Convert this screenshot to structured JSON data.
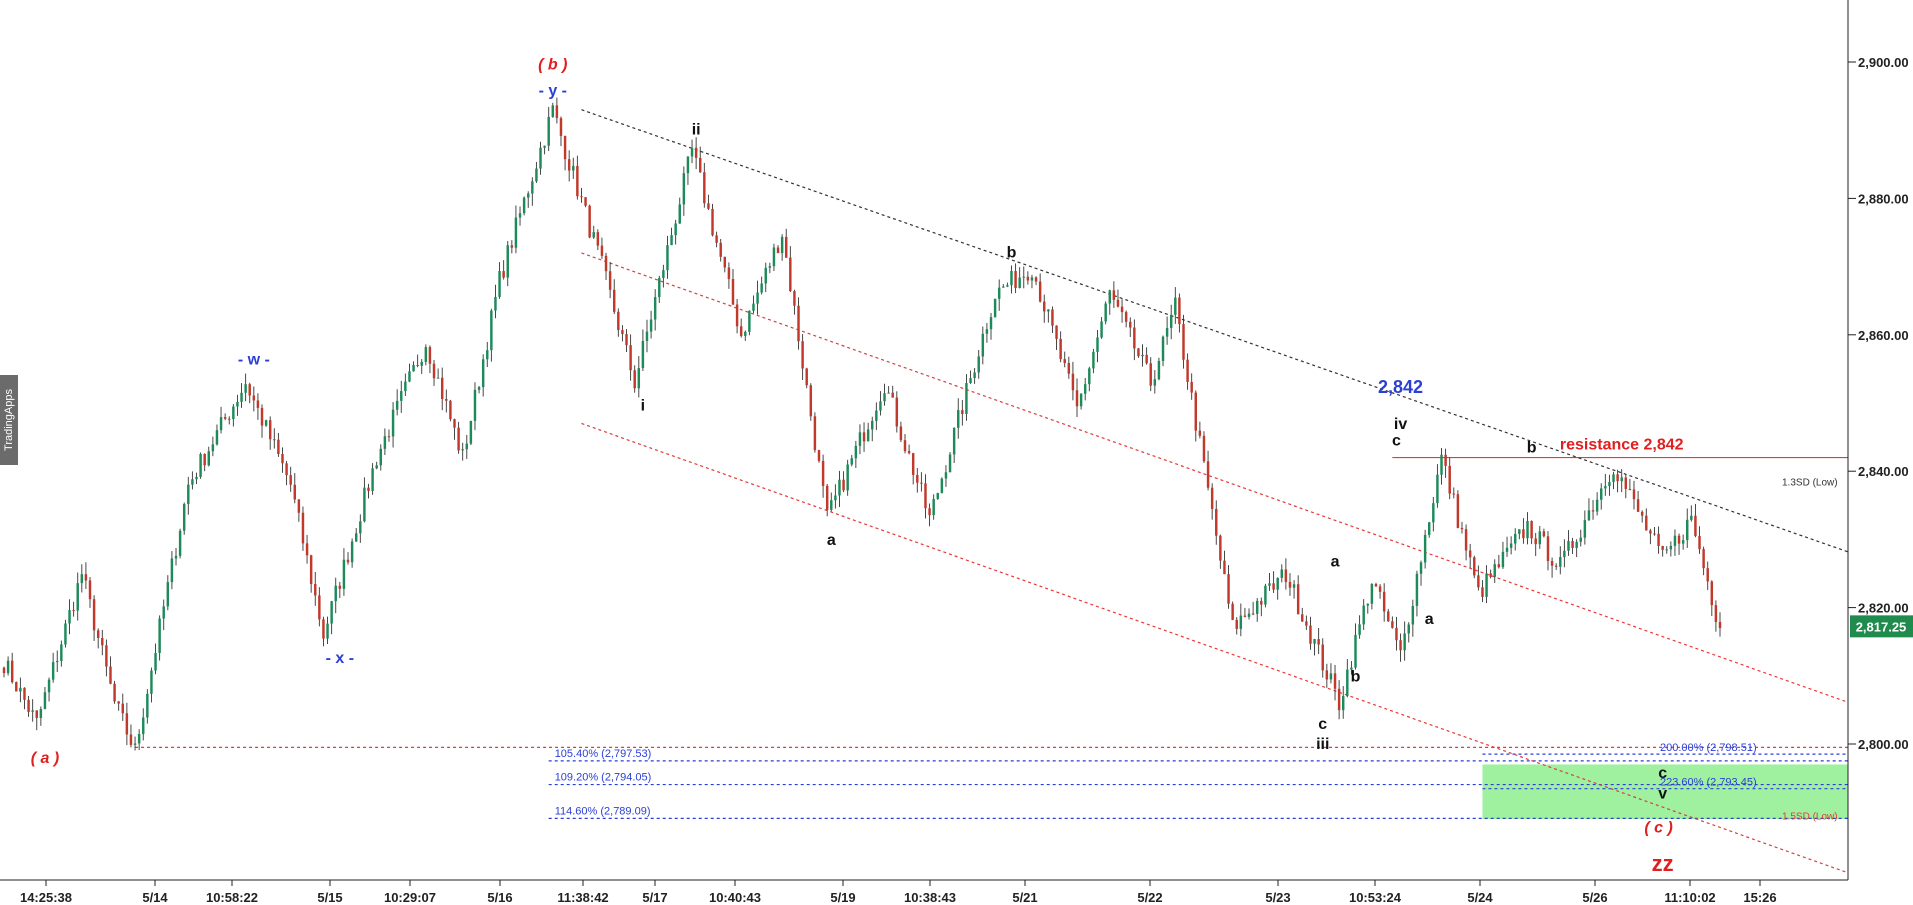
{
  "watermark": "TradingApps",
  "colors": {
    "up": "#1e8a5a",
    "down": "#c0392b",
    "wick": "#333333",
    "black_line": "#333333",
    "red_line": "#e23b3b",
    "blue_line": "#2b3fd6",
    "zone": "#9ff09f",
    "price_badge": "#1f8b4c"
  },
  "chart_data": {
    "type": "candlestick",
    "title": "",
    "xlabel": "",
    "ylabel": "",
    "ylim": [
      2775,
      2908
    ],
    "current_price": 2817.25,
    "current_price_label": "2,817.25",
    "y_ticks": [
      {
        "value": 2800,
        "label": "2,800.00"
      },
      {
        "value": 2820,
        "label": "2,820.00"
      },
      {
        "value": 2840,
        "label": "2,840.00"
      },
      {
        "value": 2860,
        "label": "2,860.00"
      },
      {
        "value": 2880,
        "label": "2,880.00"
      },
      {
        "value": 2900,
        "label": "2,900.00"
      }
    ],
    "x_ticks": [
      "14:25:38",
      "5/14",
      "10:58:22",
      "5/15",
      "10:29:07",
      "5/16",
      "11:38:42",
      "5/17",
      "10:40:43",
      "5/19",
      "10:38:43",
      "5/21",
      "5/22",
      "5/23",
      "10:53:24",
      "5/24",
      "5/26",
      "11:10:02",
      "15:26"
    ],
    "pivots": [
      {
        "i": 0,
        "v": 2812
      },
      {
        "i": 8,
        "v": 2803
      },
      {
        "i": 19,
        "v": 2825
      },
      {
        "i": 27,
        "v": 2806
      },
      {
        "i": 32,
        "v": 2799
      },
      {
        "i": 45,
        "v": 2838
      },
      {
        "i": 59,
        "v": 2853
      },
      {
        "i": 70,
        "v": 2838
      },
      {
        "i": 78,
        "v": 2816
      },
      {
        "i": 91,
        "v": 2842
      },
      {
        "i": 103,
        "v": 2859
      },
      {
        "i": 112,
        "v": 2842
      },
      {
        "i": 121,
        "v": 2868
      },
      {
        "i": 134,
        "v": 2893
      },
      {
        "i": 146,
        "v": 2870
      },
      {
        "i": 154,
        "v": 2853
      },
      {
        "i": 168,
        "v": 2887
      },
      {
        "i": 180,
        "v": 2860
      },
      {
        "i": 190,
        "v": 2875
      },
      {
        "i": 201,
        "v": 2833
      },
      {
        "i": 215,
        "v": 2853
      },
      {
        "i": 226,
        "v": 2833
      },
      {
        "i": 242,
        "v": 2866
      },
      {
        "i": 251,
        "v": 2870
      },
      {
        "i": 262,
        "v": 2849
      },
      {
        "i": 270,
        "v": 2866
      },
      {
        "i": 280,
        "v": 2853
      },
      {
        "i": 286,
        "v": 2864
      },
      {
        "i": 300,
        "v": 2817
      },
      {
        "i": 313,
        "v": 2825
      },
      {
        "i": 326,
        "v": 2806
      },
      {
        "i": 334,
        "v": 2824
      },
      {
        "i": 341,
        "v": 2813
      },
      {
        "i": 351,
        "v": 2842
      },
      {
        "i": 360,
        "v": 2822
      },
      {
        "i": 372,
        "v": 2832
      },
      {
        "i": 380,
        "v": 2826
      },
      {
        "i": 393,
        "v": 2841
      },
      {
        "i": 405,
        "v": 2827
      },
      {
        "i": 412,
        "v": 2833
      },
      {
        "i": 419,
        "v": 2817
      }
    ],
    "candle_count": 420,
    "channels": [
      {
        "color": "black_line",
        "dash": "3,3",
        "from": {
          "i": 141,
          "v": 2893
        },
        "to": {
          "i": 432,
          "v": 2832
        }
      },
      {
        "color": "red_line",
        "dash": "3,3",
        "from": {
          "i": 141,
          "v": 2872
        },
        "to": {
          "i": 432,
          "v": 2810
        }
      },
      {
        "color": "red_line",
        "dash": "3,3",
        "from": {
          "i": 141,
          "v": 2847
        },
        "to": {
          "i": 432,
          "v": 2785
        }
      }
    ],
    "levels": [
      {
        "value": 2799.5,
        "from_i": 32,
        "color": "red_line",
        "dash": "3,3"
      },
      {
        "value": 2797.53,
        "from_i": 133,
        "color": "blue_line",
        "dash": "3,3",
        "label": "105.40% (2,797.53)"
      },
      {
        "value": 2794.05,
        "from_i": 133,
        "color": "blue_line",
        "dash": "3,3",
        "label": "109.20% (2,794.05)"
      },
      {
        "value": 2789.09,
        "from_i": 133,
        "color": "blue_line",
        "dash": "3,3",
        "label": "114.60% (2,789.09)"
      },
      {
        "value": 2842,
        "from_i": 339,
        "color": "red_line",
        "dash": "",
        "label": "resistance 2,842"
      }
    ],
    "right_levels": [
      {
        "value": 2798.51,
        "label": "200.00% (2,798.51)",
        "color": "blue_line"
      },
      {
        "value": 2793.45,
        "label": "223.60% (2,793.45)",
        "color": "blue_line"
      }
    ],
    "zone": {
      "from_i": 361,
      "top": 2797,
      "bottom": 2789
    },
    "sd_labels": [
      {
        "value": 2838.5,
        "label": "1.3SD (Low)",
        "color": "#333333"
      },
      {
        "value": 2789.5,
        "label": "1.5SD (Low)",
        "color": "#e23b3b"
      }
    ],
    "annotations": [
      {
        "text": "( a )",
        "i": 10,
        "v": 2801,
        "color": "#e02020",
        "size": 16,
        "italic": true,
        "dy": 26
      },
      {
        "text": "- w -",
        "i": 61,
        "v": 2853,
        "color": "#2b3fd6",
        "size": 16,
        "dy": -18
      },
      {
        "text": "- x -",
        "i": 82,
        "v": 2816,
        "color": "#2b3fd6",
        "size": 16,
        "dy": 28
      },
      {
        "text": "- y -",
        "i": 134,
        "v": 2893,
        "color": "#2b3fd6",
        "size": 16,
        "dy": -14
      },
      {
        "text": "( b )",
        "i": 134,
        "v": 2893,
        "color": "#e02020",
        "size": 16,
        "italic": true,
        "dy": -40
      },
      {
        "text": "ii",
        "i": 169,
        "v": 2887,
        "color": "#111111",
        "size": 16,
        "dy": -16
      },
      {
        "text": "i",
        "i": 156,
        "v": 2853,
        "color": "#111111",
        "size": 16,
        "dy": 28
      },
      {
        "text": "a",
        "i": 202,
        "v": 2833,
        "color": "#111111",
        "size": 16,
        "dy": 26
      },
      {
        "text": "b",
        "i": 246,
        "v": 2869,
        "color": "#111111",
        "size": 16,
        "dy": -16
      },
      {
        "text": "2,842",
        "i": 341,
        "v": 2850,
        "color": "#2b3fd6",
        "size": 18,
        "dy": -10
      },
      {
        "text": "iv",
        "i": 341,
        "v": 2845,
        "color": "#111111",
        "size": 16,
        "dy": -8
      },
      {
        "text": "c",
        "i": 340,
        "v": 2842,
        "color": "#111111",
        "size": 16,
        "dy": -12
      },
      {
        "text": "b",
        "i": 373,
        "v": 2841,
        "color": "#111111",
        "size": 16,
        "dy": -12
      },
      {
        "text": "resistance 2,842",
        "i": 395,
        "v": 2842,
        "color": "#e02020",
        "size": 16,
        "dy": -8
      },
      {
        "text": "a",
        "i": 325,
        "v": 2824,
        "color": "#111111",
        "size": 16,
        "dy": -14
      },
      {
        "text": "b",
        "i": 330,
        "v": 2813,
        "color": "#111111",
        "size": 16,
        "dy": 26
      },
      {
        "text": "c",
        "i": 322,
        "v": 2806,
        "color": "#111111",
        "size": 16,
        "dy": 26
      },
      {
        "text": "iii",
        "i": 322,
        "v": 2806,
        "color": "#111111",
        "size": 16,
        "dy": 46
      },
      {
        "text": "a",
        "i": 348,
        "v": 2822,
        "color": "#111111",
        "size": 16,
        "dy": 30
      },
      {
        "text": "c",
        "i": 405,
        "v": 2795,
        "color": "#111111",
        "size": 16,
        "dy": 0
      },
      {
        "text": "v",
        "i": 405,
        "v": 2792,
        "color": "#111111",
        "size": 16,
        "dy": 0
      },
      {
        "text": "( c )",
        "i": 404,
        "v": 2787,
        "color": "#e02020",
        "size": 16,
        "italic": true,
        "dy": 0
      },
      {
        "text": "zz",
        "i": 405,
        "v": 2782,
        "color": "#e02020",
        "size": 22,
        "dy": 4
      }
    ]
  }
}
